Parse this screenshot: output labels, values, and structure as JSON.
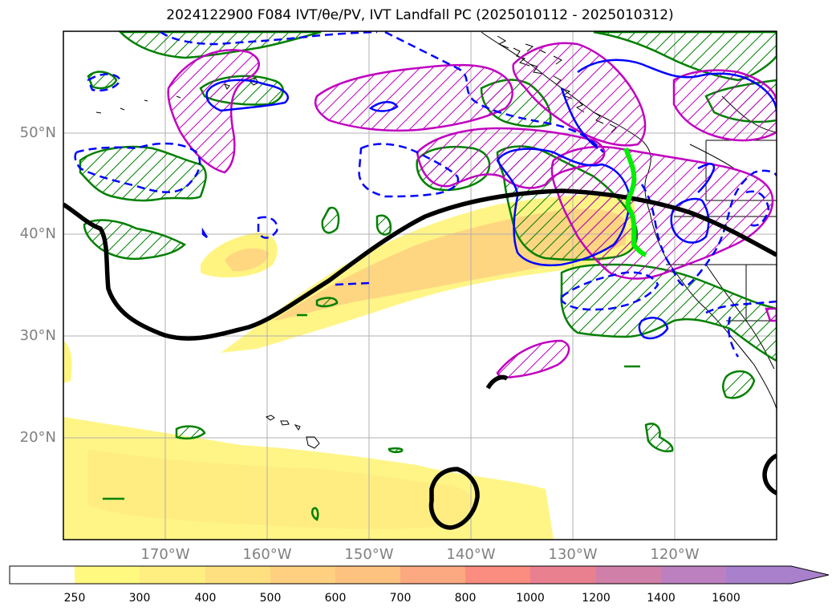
{
  "title": "2024122900 F084 IVT/θe/PV, IVT Landfall PC (2025010112 - 2025010312)",
  "map": {
    "lat_labels": [
      "50°N",
      "40°N",
      "30°N",
      "20°N"
    ],
    "lon_labels": [
      "170°W",
      "160°W",
      "150°W",
      "140°W",
      "130°W",
      "120°W"
    ],
    "lat_range": [
      10,
      60
    ],
    "lon_range": [
      -180,
      -110
    ],
    "gridlines": true
  },
  "colorbar": {
    "ticks": [
      "250",
      "300",
      "400",
      "500",
      "600",
      "700",
      "800",
      "1000",
      "1200",
      "1400",
      "1600"
    ],
    "colors": [
      "#ffffff",
      "#fff980",
      "#ffee80",
      "#fee080",
      "#fed080",
      "#fdc280",
      "#fca880",
      "#fb8c80",
      "#e88090",
      "#d080a8",
      "#bc80c0",
      "#a880cc"
    ],
    "extend": "max"
  },
  "colors": {
    "ivt_fill_low": "#fff480",
    "ivt_fill_mid": "#fed080",
    "green_contour": "#008000",
    "magenta_contour": "#c000c0",
    "blue_contour": "#0000ff",
    "black_contour": "#000000",
    "landfall_line": "#00ff00"
  }
}
